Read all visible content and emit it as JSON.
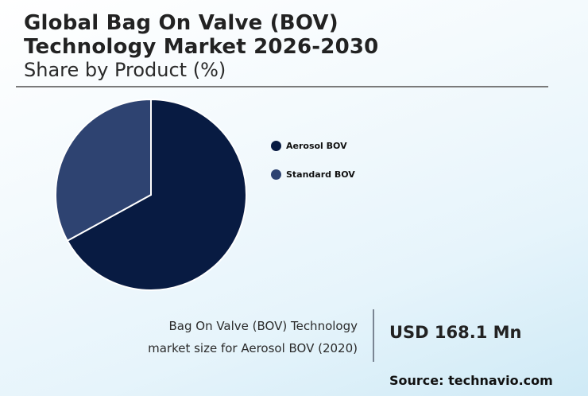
{
  "header": {
    "title_line1": "Global Bag On Valve (BOV)",
    "title_line2": "Technology Market 2026-2030",
    "subtitle": "Share by Product (%)"
  },
  "legend": {
    "items": [
      {
        "label": "Aerosol BOV",
        "color": "#081b42"
      },
      {
        "label": "Standard BOV",
        "color": "#2e4371"
      }
    ]
  },
  "stat": {
    "label_line1": "Bag On Valve (BOV) Technology",
    "label_line2": "market size for Aerosol BOV (2020)",
    "value": "USD 168.1 Mn"
  },
  "source": "Source: technavio.com",
  "chart_data": {
    "type": "pie",
    "title": "Global Bag On Valve (BOV) Technology Market 2026-2030",
    "subtitle": "Share by Product (%)",
    "categories": [
      "Aerosol BOV",
      "Standard BOV"
    ],
    "values": [
      67,
      33
    ],
    "colors": [
      "#081b42",
      "#2e4371"
    ],
    "legend_position": "right",
    "start_angle": "12 o'clock, clockwise"
  }
}
